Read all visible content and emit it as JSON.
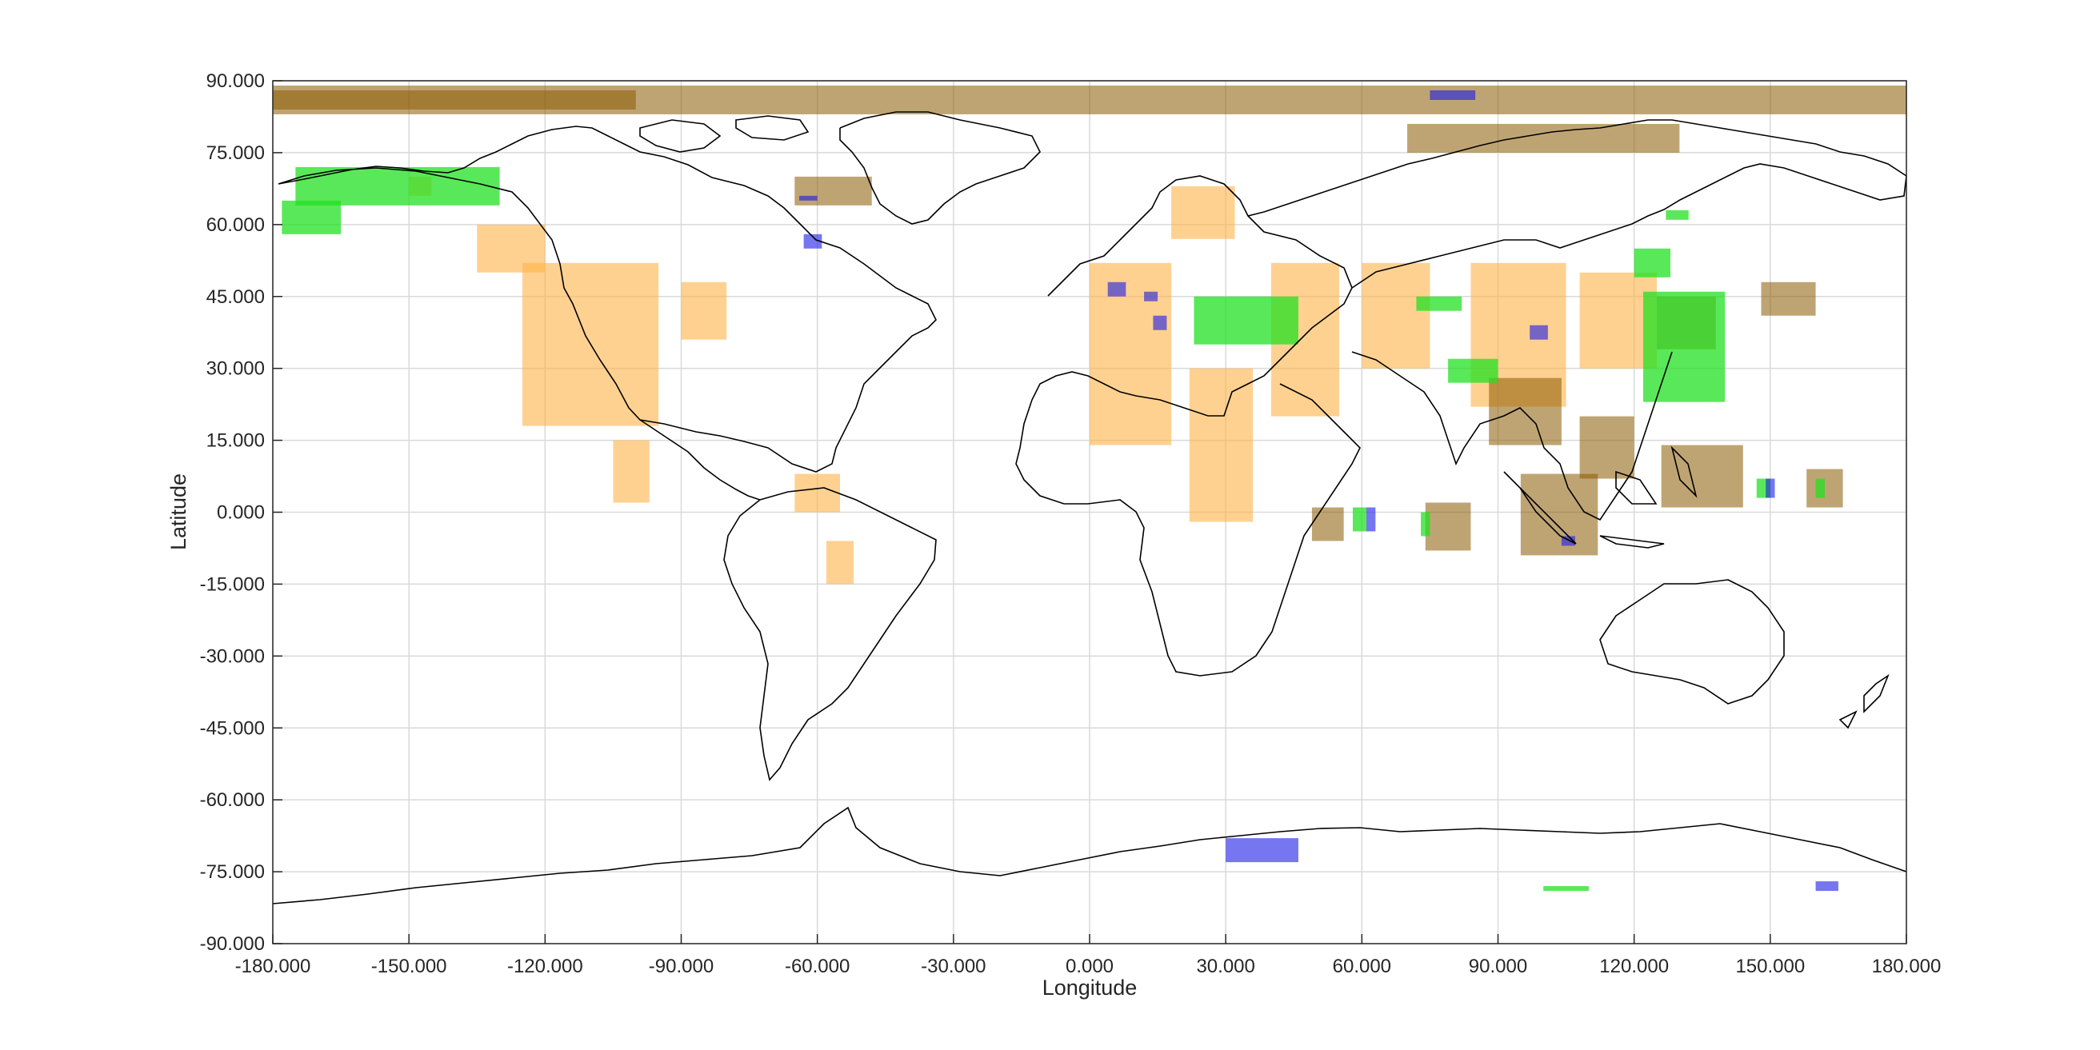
{
  "chart_data": {
    "type": "map",
    "xlabel": "Longitude",
    "ylabel": "Latitude",
    "xlim": [
      -180,
      180
    ],
    "ylim": [
      -90,
      90
    ],
    "grid": true,
    "xticks": [
      "-180.000",
      "-150.000",
      "-120.000",
      "-90.000",
      "-60.000",
      "-30.000",
      "0.000",
      "30.000",
      "60.000",
      "90.000",
      "120.000",
      "150.000",
      "180.000"
    ],
    "yticks": [
      "90.000",
      "75.000",
      "60.000",
      "45.000",
      "30.000",
      "15.000",
      "0.000",
      "-15.000",
      "-30.000",
      "-45.000",
      "-60.000",
      "-75.000",
      "-90.000"
    ],
    "colors": {
      "brown": "#8b5a00",
      "orange": "#ffb347",
      "green": "#22e022",
      "blue": "#1a1ae6",
      "coast": "#000000",
      "grid": "#d9d9d9"
    },
    "footprints": {
      "brown": [
        {
          "lon": [
            -180,
            180
          ],
          "lat": [
            83,
            89
          ]
        },
        {
          "lon": [
            -180,
            -100
          ],
          "lat": [
            84,
            88
          ]
        },
        {
          "lon": [
            70,
            130
          ],
          "lat": [
            75,
            81
          ]
        },
        {
          "lon": [
            -65,
            -48
          ],
          "lat": [
            64,
            70
          ]
        },
        {
          "lon": [
            148,
            160
          ],
          "lat": [
            41,
            48
          ]
        },
        {
          "lon": [
            88,
            104
          ],
          "lat": [
            14,
            28
          ]
        },
        {
          "lon": [
            108,
            120
          ],
          "lat": [
            7,
            20
          ]
        },
        {
          "lon": [
            126,
            144
          ],
          "lat": [
            1,
            14
          ]
        },
        {
          "lon": [
            95,
            112
          ],
          "lat": [
            -9,
            8
          ]
        },
        {
          "lon": [
            74,
            84
          ],
          "lat": [
            -8,
            2
          ]
        },
        {
          "lon": [
            49,
            56
          ],
          "lat": [
            -6,
            1
          ]
        },
        {
          "lon": [
            158,
            166
          ],
          "lat": [
            1,
            9
          ]
        },
        {
          "lon": [
            125,
            138
          ],
          "lat": [
            34,
            45
          ]
        }
      ],
      "orange": [
        {
          "lon": [
            -135,
            -120
          ],
          "lat": [
            50,
            60
          ]
        },
        {
          "lon": [
            -125,
            -95
          ],
          "lat": [
            18,
            52
          ]
        },
        {
          "lon": [
            -90,
            -80
          ],
          "lat": [
            36,
            48
          ]
        },
        {
          "lon": [
            18,
            32
          ],
          "lat": [
            57,
            68
          ]
        },
        {
          "lon": [
            0,
            18
          ],
          "lat": [
            14,
            52
          ]
        },
        {
          "lon": [
            22,
            36
          ],
          "lat": [
            -2,
            30
          ]
        },
        {
          "lon": [
            40,
            55
          ],
          "lat": [
            20,
            52
          ]
        },
        {
          "lon": [
            60,
            75
          ],
          "lat": [
            30,
            52
          ]
        },
        {
          "lon": [
            84,
            105
          ],
          "lat": [
            22,
            52
          ]
        },
        {
          "lon": [
            108,
            125
          ],
          "lat": [
            30,
            50
          ]
        },
        {
          "lon": [
            -65,
            -55
          ],
          "lat": [
            0,
            8
          ]
        },
        {
          "lon": [
            -58,
            -52
          ],
          "lat": [
            -15,
            -6
          ]
        },
        {
          "lon": [
            -150,
            -145
          ],
          "lat": [
            66,
            70
          ]
        },
        {
          "lon": [
            -105,
            -97
          ],
          "lat": [
            2,
            15
          ]
        }
      ],
      "green": [
        {
          "lon": [
            -175,
            -130
          ],
          "lat": [
            64,
            72
          ]
        },
        {
          "lon": [
            -178,
            -165
          ],
          "lat": [
            58,
            65
          ]
        },
        {
          "lon": [
            23,
            46
          ],
          "lat": [
            35,
            45
          ]
        },
        {
          "lon": [
            72,
            82
          ],
          "lat": [
            42,
            45
          ]
        },
        {
          "lon": [
            79,
            90
          ],
          "lat": [
            27,
            32
          ]
        },
        {
          "lon": [
            120,
            128
          ],
          "lat": [
            49,
            55
          ]
        },
        {
          "lon": [
            122,
            140
          ],
          "lat": [
            23,
            46
          ]
        },
        {
          "lon": [
            127,
            132
          ],
          "lat": [
            61,
            63
          ]
        },
        {
          "lon": [
            58,
            61
          ],
          "lat": [
            -4,
            1
          ]
        },
        {
          "lon": [
            73,
            75
          ],
          "lat": [
            -5,
            0
          ]
        },
        {
          "lon": [
            147,
            150
          ],
          "lat": [
            3,
            7
          ]
        },
        {
          "lon": [
            160,
            162
          ],
          "lat": [
            3,
            7
          ]
        },
        {
          "lon": [
            100,
            110
          ],
          "lat": [
            -79,
            -78
          ]
        }
      ],
      "blue": [
        {
          "lon": [
            75,
            85
          ],
          "lat": [
            86,
            88
          ]
        },
        {
          "lon": [
            -64,
            -60
          ],
          "lat": [
            65,
            66
          ]
        },
        {
          "lon": [
            -63,
            -59
          ],
          "lat": [
            55,
            58
          ]
        },
        {
          "lon": [
            4,
            8
          ],
          "lat": [
            45,
            48
          ]
        },
        {
          "lon": [
            12,
            15
          ],
          "lat": [
            44,
            46
          ]
        },
        {
          "lon": [
            14,
            17
          ],
          "lat": [
            38,
            41
          ]
        },
        {
          "lon": [
            97,
            101
          ],
          "lat": [
            36,
            39
          ]
        },
        {
          "lon": [
            61,
            63
          ],
          "lat": [
            -4,
            1
          ]
        },
        {
          "lon": [
            149,
            151
          ],
          "lat": [
            3,
            7
          ]
        },
        {
          "lon": [
            30,
            46
          ],
          "lat": [
            -73,
            -68
          ]
        },
        {
          "lon": [
            160,
            165
          ],
          "lat": [
            -79,
            -77
          ]
        },
        {
          "lon": [
            104,
            107
          ],
          "lat": [
            -7,
            -5
          ]
        }
      ]
    }
  }
}
